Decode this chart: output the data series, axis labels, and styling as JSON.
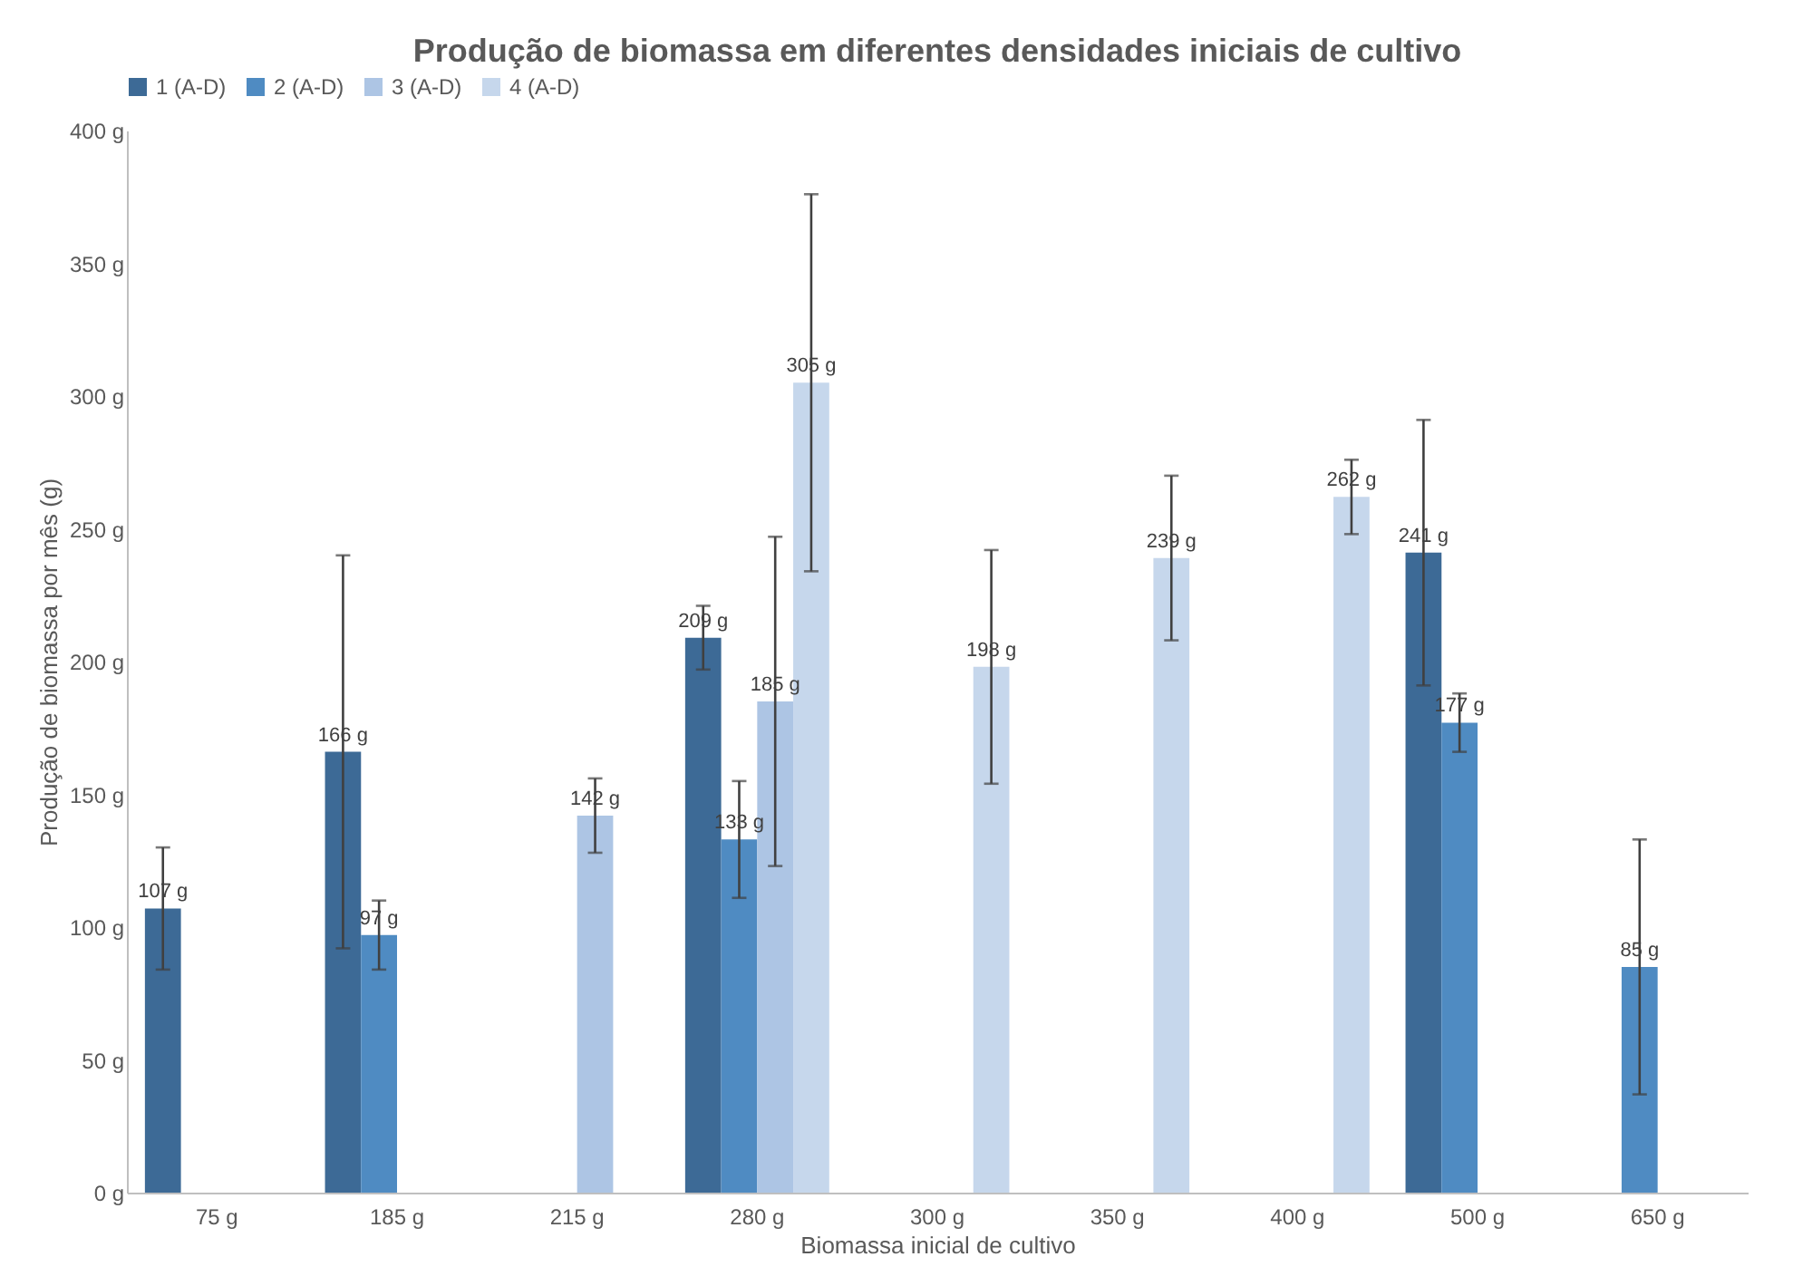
{
  "chart_data": {
    "type": "bar",
    "title": "Produção de biomassa em diferentes densidades iniciais de cultivo",
    "xlabel": "Biomassa inicial de cultivo",
    "ylabel": "Produção de biomassa por mês (g)",
    "categories": [
      "75 g",
      "185 g",
      "215 g",
      "280 g",
      "300 g",
      "350 g",
      "400 g",
      "500 g",
      "650 g"
    ],
    "series": [
      {
        "name": "1 (A-D)",
        "color": "#3d6a96",
        "values": [
          107,
          166,
          null,
          209,
          null,
          null,
          null,
          241,
          null
        ],
        "errors": [
          23,
          74,
          null,
          12,
          null,
          null,
          null,
          50,
          null
        ],
        "value_labels": [
          "107 g",
          "166 g",
          null,
          "209 g",
          null,
          null,
          null,
          "241 g",
          null
        ]
      },
      {
        "name": "2 (A-D)",
        "color": "#4f8bc2",
        "values": [
          null,
          97,
          null,
          133,
          null,
          null,
          null,
          177,
          85
        ],
        "errors": [
          null,
          13,
          null,
          22,
          null,
          null,
          null,
          11,
          48
        ],
        "value_labels": [
          null,
          "97 g",
          null,
          "133 g",
          null,
          null,
          null,
          "177 g",
          "85 g"
        ]
      },
      {
        "name": "3 (A-D)",
        "color": "#adc5e4",
        "values": [
          null,
          null,
          142,
          185,
          null,
          null,
          null,
          null,
          null
        ],
        "errors": [
          null,
          null,
          14,
          62,
          null,
          null,
          null,
          null,
          null
        ],
        "value_labels": [
          null,
          null,
          "142 g",
          "185 g",
          null,
          null,
          null,
          null,
          null
        ]
      },
      {
        "name": "4 (A-D)",
        "color": "#c6d7ec",
        "values": [
          null,
          null,
          null,
          305,
          198,
          239,
          262,
          null,
          null
        ],
        "errors": [
          null,
          null,
          null,
          71,
          44,
          31,
          14,
          null,
          null
        ],
        "value_labels": [
          null,
          null,
          null,
          "305 g",
          "198 g",
          "239 g",
          "262 g",
          null,
          null
        ]
      }
    ],
    "ylim": [
      0,
      400
    ],
    "yticks": [
      {
        "value": 0,
        "label": "0 g"
      },
      {
        "value": 50,
        "label": "50 g"
      },
      {
        "value": 100,
        "label": "100 g"
      },
      {
        "value": 150,
        "label": "150 g"
      },
      {
        "value": 200,
        "label": "200 g"
      },
      {
        "value": 250,
        "label": "250 g"
      },
      {
        "value": 300,
        "label": "300 g"
      },
      {
        "value": 350,
        "label": "350 g"
      },
      {
        "value": 400,
        "label": "400 g"
      }
    ],
    "legend": "top",
    "grid": false
  }
}
